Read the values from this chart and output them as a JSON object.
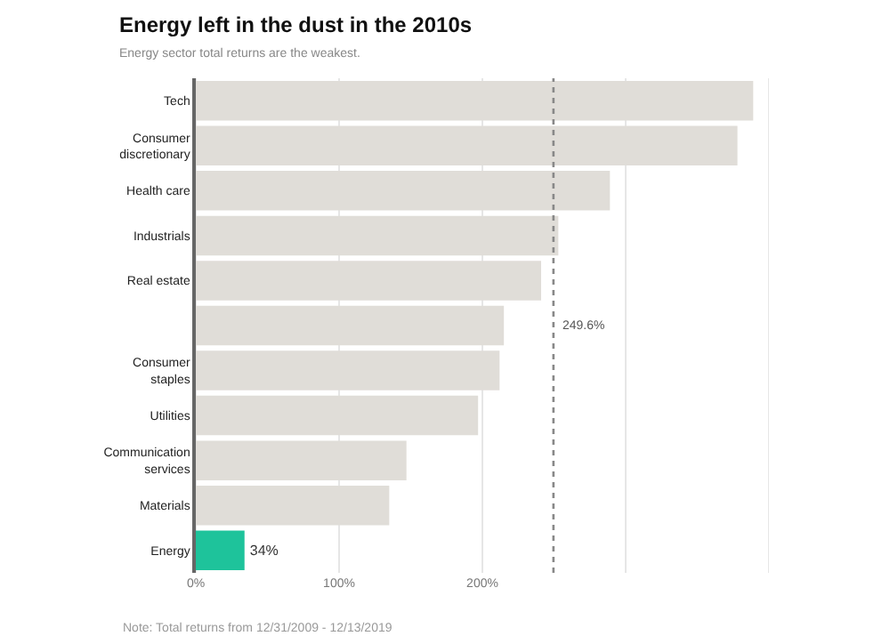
{
  "chart_data": {
    "type": "bar",
    "orientation": "horizontal",
    "title": "Energy left in the dust in the 2010s",
    "subtitle": "Energy sector total returns are the weakest.",
    "categories": [
      "Tech",
      "Consumer discretionary",
      "Health care",
      "Industrials",
      "Real estate",
      null,
      "Consumer staples",
      "Utilities",
      "Communication services",
      "Materials",
      "Energy"
    ],
    "values": [
      389,
      378,
      289,
      253,
      241,
      215,
      212,
      197,
      147,
      135,
      34
    ],
    "colors": [
      "#e0ddd8",
      "#e0ddd8",
      "#e0ddd8",
      "#e0ddd8",
      "#e0ddd8",
      "#e0ddd8",
      "#e0ddd8",
      "#e0ddd8",
      "#e0ddd8",
      "#e0ddd8",
      "#1ec39b"
    ],
    "value_labels": [
      null,
      null,
      null,
      null,
      null,
      null,
      null,
      null,
      null,
      null,
      "34%"
    ],
    "xlim": [
      0,
      400
    ],
    "xticks": [
      {
        "value": 0,
        "label": "0%"
      },
      {
        "value": 100,
        "label": "100%"
      },
      {
        "value": 200,
        "label": "200%"
      },
      {
        "value": 300,
        "label": null
      },
      {
        "value": 400,
        "label": null
      }
    ],
    "grid": "x",
    "ref_lines": [
      {
        "axis": "x",
        "value": 249.6,
        "label": "249.6%",
        "color": "#888888",
        "line_style": "dashed"
      }
    ],
    "annotations": [
      "Note: Total returns from 12/31/2009 - 12/13/2019"
    ]
  }
}
